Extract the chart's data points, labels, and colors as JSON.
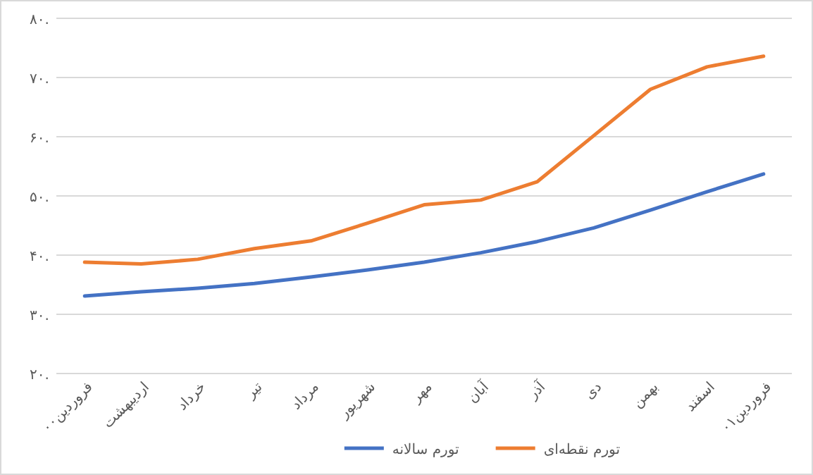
{
  "chart_data": {
    "type": "line",
    "categories": [
      "فروردین۰۰",
      "اردیبهشت",
      "خرداد",
      "تیر",
      "مرداد",
      "شهریور",
      "مهر",
      "آبان",
      "آذر",
      "دی",
      "بهمن",
      "اسفند",
      "فروردین۰۱"
    ],
    "series": [
      {
        "name": "تورم نقطه‌ای",
        "color": "#ed7d31",
        "values": [
          38.8,
          38.5,
          39.3,
          41.1,
          42.4,
          45.4,
          48.5,
          49.3,
          52.4,
          60.2,
          68.0,
          71.8,
          73.6
        ]
      },
      {
        "name": "تورم سالانه",
        "color": "#4472c4",
        "values": [
          33.1,
          33.8,
          34.4,
          35.2,
          36.3,
          37.5,
          38.8,
          40.4,
          42.3,
          44.6,
          47.6,
          50.7,
          53.7
        ]
      }
    ],
    "ylim": [
      20,
      80
    ],
    "yticks": [
      {
        "value": 20,
        "label": "۲۰."
      },
      {
        "value": 30,
        "label": "۳۰."
      },
      {
        "value": 40,
        "label": "۴۰."
      },
      {
        "value": 50,
        "label": "۵۰."
      },
      {
        "value": 60,
        "label": "۶۰."
      },
      {
        "value": 70,
        "label": "۷۰."
      },
      {
        "value": 80,
        "label": "۸۰."
      }
    ],
    "grid": "y",
    "legend": "bottom"
  }
}
